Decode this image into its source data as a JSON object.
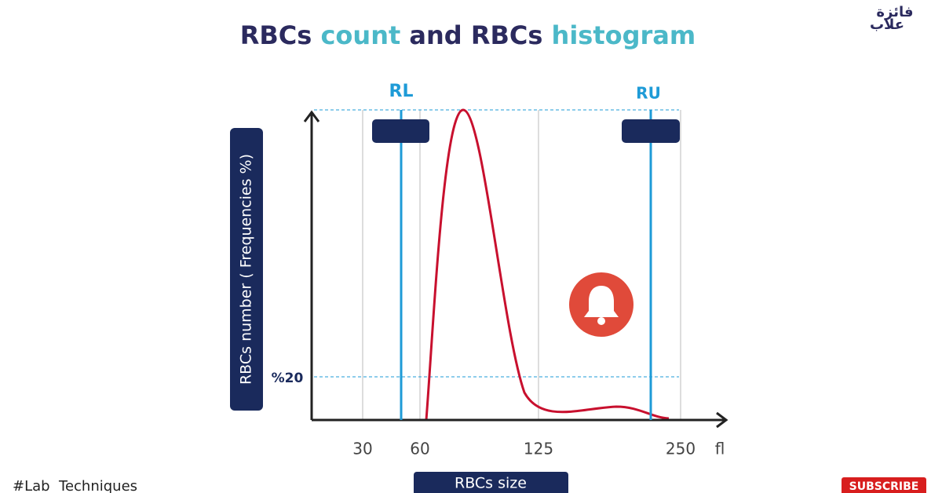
{
  "title": {
    "part1": "RBCs",
    "part2": "count",
    "part3": "and RBCs",
    "part4": "histogram"
  },
  "markers": {
    "lower": "RL",
    "upper": "RU"
  },
  "y_axis_label": "RBCs number ( Frequencies %)",
  "threshold_label": "%20",
  "x_ticks": [
    "30",
    "60",
    "125",
    "250"
  ],
  "x_unit": "fl",
  "x_axis_label": "RBCs size",
  "hashtag": "#Lab  Techniques",
  "subscribe": "SUBSCRIBE",
  "logo": {
    "top": "فائزة",
    "bottom": "علاب"
  }
}
